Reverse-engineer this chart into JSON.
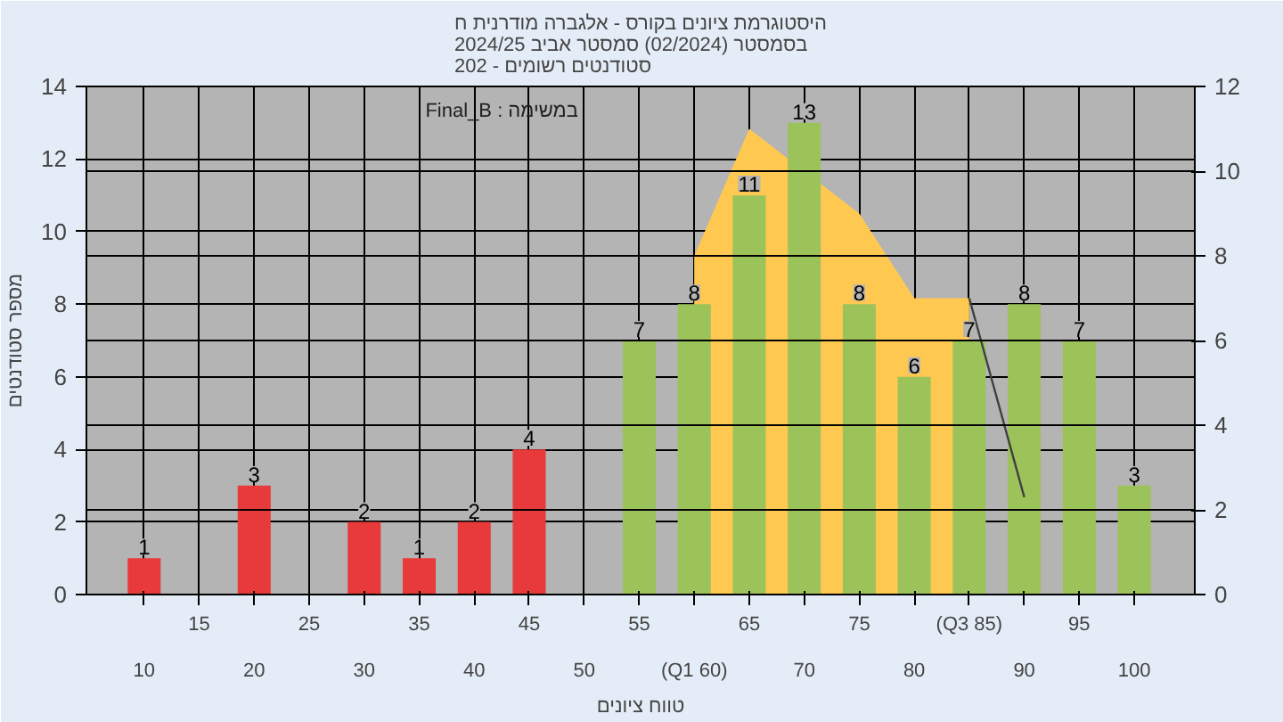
{
  "chart_data": {
    "type": "bar",
    "title": "היסטוגרמת ציונים בקורס - אלגברה מודרנית ח\nבסמסטר  (02/2024)  סמסטר אביב 2024/25\nסטודנטים רשומים - 202",
    "xlabel": "טווח ציונים",
    "ylabel": "מספר סטודנטים",
    "annotations": [
      "Final_B : במשימה"
    ],
    "categories": [
      "10",
      "15",
      "20",
      "25",
      "30",
      "35",
      "40",
      "45",
      "50",
      "55",
      "(Q1 60)",
      "65",
      "70",
      "75",
      "80",
      "(Q3 85)",
      "90",
      "95",
      "100"
    ],
    "series": [
      {
        "values": [
          1,
          0,
          3,
          0,
          2,
          1,
          2,
          4,
          0,
          7,
          8,
          11,
          13,
          8,
          6,
          7,
          8,
          7,
          3
        ],
        "colors": [
          "#e83a3a",
          "#e83a3a",
          "#e83a3a",
          "#e83a3a",
          "#e83a3a",
          "#e83a3a",
          "#e83a3a",
          "#e83a3a",
          "#e83a3a",
          "#9cc25a",
          "#9cc25a",
          "#9cc25a",
          "#9cc25a",
          "#9cc25a",
          "#9cc25a",
          "#9cc25a",
          "#9cc25a",
          "#9cc25a",
          "#9cc25a"
        ],
        "value_labels": [
          "1",
          null,
          "3",
          null,
          "2",
          "1",
          "2",
          "4",
          null,
          "7",
          "8",
          "11",
          "13",
          "8",
          "6",
          "7",
          "8",
          "7",
          "3"
        ]
      },
      {
        "type": "area",
        "axis": "y2",
        "color": "#ffc850",
        "values": [
          null,
          null,
          null,
          null,
          null,
          null,
          null,
          null,
          null,
          null,
          8,
          11,
          null,
          9,
          7,
          7,
          null,
          null,
          null
        ]
      },
      {
        "type": "line",
        "axis": "y2",
        "color": "#404040",
        "values": [
          null,
          null,
          null,
          null,
          null,
          null,
          null,
          null,
          null,
          null,
          null,
          null,
          null,
          null,
          null,
          7,
          2.3,
          null,
          null
        ]
      }
    ],
    "ylim": [
      0,
      14
    ],
    "yticks": [
      0,
      2,
      4,
      6,
      8,
      10,
      12,
      14
    ],
    "y2lim": [
      0,
      12
    ],
    "y2ticks": [
      0,
      2,
      4,
      6,
      8,
      10,
      12
    ],
    "grid": true
  }
}
